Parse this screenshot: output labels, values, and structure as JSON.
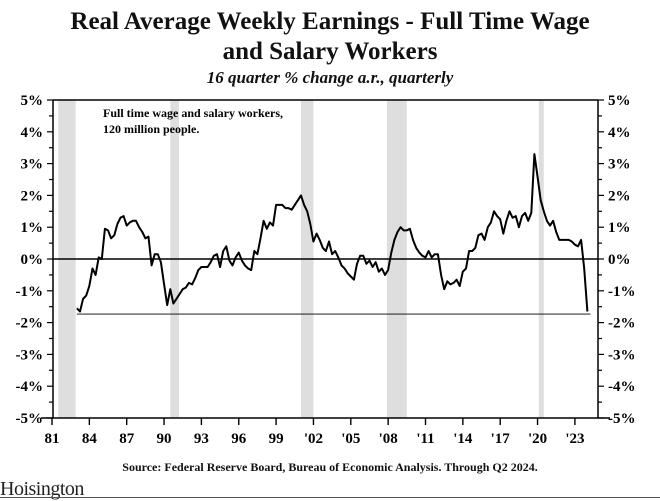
{
  "chart_data": {
    "type": "line",
    "title": "Real Average Weekly Earnings - Full Time Wage and Salary Workers",
    "title_lines": [
      "Real Average Weekly Earnings - Full Time Wage",
      "and Salary Workers"
    ],
    "subtitle": "16 quarter % change a.r., quarterly",
    "annotation": [
      "Full time wage and salary workers,",
      "120 million people."
    ],
    "source": "Source:  Federal Reserve Board, Bureau of Economic Analysis.  Through Q2 2024.",
    "xlabel": "",
    "ylabel": "",
    "xlim": [
      1981,
      2025
    ],
    "ylim": [
      -5,
      5
    ],
    "x_ticks": [
      1981,
      1984,
      1987,
      1990,
      1993,
      1996,
      1999,
      2002,
      2005,
      2008,
      2011,
      2014,
      2017,
      2020,
      2023
    ],
    "x_tick_labels": [
      "81",
      "84",
      "87",
      "90",
      "93",
      "96",
      "99",
      "'02",
      "'05",
      "'08",
      "'11",
      "'14",
      "'17",
      "'20",
      "'23"
    ],
    "y_ticks": [
      5,
      4,
      3,
      2,
      1,
      0,
      -1,
      -2,
      -3,
      -4,
      -5
    ],
    "y_tick_labels": [
      "5%",
      "4%",
      "3%",
      "2%",
      "1%",
      "0%",
      "-1%",
      "-2%",
      "-3%",
      "-4%",
      "-5%"
    ],
    "zero_line": 0,
    "reference_line": {
      "value": -1.73,
      "x_range": [
        1983,
        2024.25
      ]
    },
    "recessions": [
      [
        1981.5,
        1982.9
      ],
      [
        1990.5,
        1991.2
      ],
      [
        2001.0,
        2002.0
      ],
      [
        2007.9,
        2009.5
      ],
      [
        2020.1,
        2020.5
      ]
    ],
    "grid": false,
    "legend": "none",
    "series": [
      {
        "name": "Real Average Weekly Earnings 16q % chg a.r.",
        "x_start": 1983.0,
        "x_step": 0.25,
        "values": [
          -1.55,
          -1.65,
          -1.25,
          -1.15,
          -0.85,
          -0.3,
          -0.5,
          0.05,
          0.0,
          0.95,
          0.9,
          0.65,
          0.75,
          1.1,
          1.3,
          1.35,
          1.05,
          1.15,
          1.2,
          1.2,
          1.0,
          0.85,
          0.65,
          0.7,
          -0.2,
          0.15,
          0.15,
          -0.1,
          -0.8,
          -1.45,
          -0.95,
          -1.4,
          -1.25,
          -1.1,
          -0.95,
          -0.9,
          -0.75,
          -0.8,
          -0.6,
          -0.35,
          -0.25,
          -0.25,
          -0.25,
          -0.1,
          0.1,
          0.15,
          -0.25,
          0.25,
          0.4,
          -0.05,
          -0.2,
          0.05,
          0.2,
          -0.05,
          -0.2,
          -0.3,
          -0.35,
          0.25,
          0.15,
          0.65,
          1.2,
          0.95,
          1.15,
          1.05,
          1.7,
          1.7,
          1.7,
          1.6,
          1.6,
          1.55,
          1.7,
          1.85,
          2.0,
          1.7,
          1.5,
          1.1,
          0.55,
          0.8,
          0.6,
          0.35,
          0.25,
          0.55,
          0.15,
          0.25,
          0.05,
          -0.2,
          -0.3,
          -0.45,
          -0.55,
          -0.65,
          -0.15,
          0.1,
          0.1,
          -0.15,
          -0.05,
          -0.25,
          -0.1,
          -0.4,
          -0.3,
          -0.5,
          -0.35,
          0.2,
          0.6,
          0.85,
          1.0,
          0.9,
          0.9,
          0.95,
          0.6,
          0.35,
          0.2,
          0.1,
          0.05,
          0.25,
          0.05,
          0.15,
          0.15,
          -0.5,
          -0.95,
          -0.7,
          -0.8,
          -0.75,
          -0.65,
          -0.85,
          -0.4,
          -0.3,
          0.25,
          0.25,
          0.35,
          0.75,
          0.8,
          0.6,
          1.0,
          1.15,
          1.5,
          1.35,
          1.25,
          0.8,
          1.2,
          1.5,
          1.3,
          1.35,
          1.0,
          1.35,
          1.45,
          1.2,
          1.45,
          3.3,
          2.6,
          1.85,
          1.5,
          1.2,
          1.05,
          1.2,
          0.85,
          0.6,
          0.6,
          0.6,
          0.6,
          0.55,
          0.45,
          0.4,
          0.6,
          -0.3,
          -1.65
        ]
      }
    ]
  },
  "footer": {
    "logo_text": "Hoisington"
  }
}
